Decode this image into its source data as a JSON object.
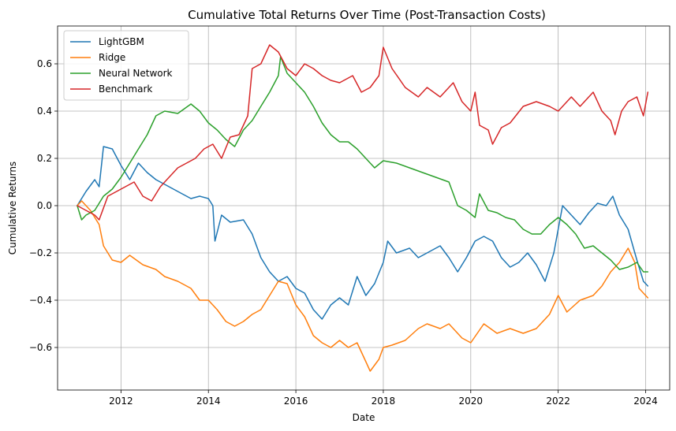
{
  "chart_data": {
    "type": "line",
    "title": "Cumulative Total Returns Over Time (Post-Transaction Costs)",
    "xlabel": "Date",
    "ylabel": "Cumulative Returns",
    "xlim": [
      2010.55,
      2024.55
    ],
    "ylim": [
      -0.78,
      0.76
    ],
    "xticks": [
      2012,
      2014,
      2016,
      2018,
      2020,
      2022,
      2024
    ],
    "xtick_labels": [
      "2012",
      "2014",
      "2016",
      "2018",
      "2020",
      "2022",
      "2024"
    ],
    "yticks": [
      -0.6,
      -0.4,
      -0.2,
      0.0,
      0.2,
      0.4,
      0.6
    ],
    "ytick_labels": [
      "−0.6",
      "−0.4",
      "−0.2",
      "0.0",
      "0.2",
      "0.4",
      "0.6"
    ],
    "grid": true,
    "legend_position": "top-left",
    "series": [
      {
        "name": "LightGBM",
        "color": "#1f77b4",
        "points": [
          [
            2011.0,
            0.0
          ],
          [
            2011.2,
            0.06
          ],
          [
            2011.4,
            0.11
          ],
          [
            2011.5,
            0.08
          ],
          [
            2011.6,
            0.25
          ],
          [
            2011.8,
            0.24
          ],
          [
            2012.0,
            0.17
          ],
          [
            2012.2,
            0.11
          ],
          [
            2012.4,
            0.18
          ],
          [
            2012.6,
            0.14
          ],
          [
            2012.8,
            0.11
          ],
          [
            2013.0,
            0.09
          ],
          [
            2013.3,
            0.06
          ],
          [
            2013.6,
            0.03
          ],
          [
            2013.8,
            0.04
          ],
          [
            2014.0,
            0.03
          ],
          [
            2014.1,
            0.0
          ],
          [
            2014.15,
            -0.15
          ],
          [
            2014.3,
            -0.04
          ],
          [
            2014.5,
            -0.07
          ],
          [
            2014.8,
            -0.06
          ],
          [
            2015.0,
            -0.12
          ],
          [
            2015.2,
            -0.22
          ],
          [
            2015.4,
            -0.28
          ],
          [
            2015.6,
            -0.32
          ],
          [
            2015.8,
            -0.3
          ],
          [
            2016.0,
            -0.35
          ],
          [
            2016.2,
            -0.37
          ],
          [
            2016.4,
            -0.44
          ],
          [
            2016.6,
            -0.48
          ],
          [
            2016.8,
            -0.42
          ],
          [
            2017.0,
            -0.39
          ],
          [
            2017.2,
            -0.42
          ],
          [
            2017.4,
            -0.3
          ],
          [
            2017.6,
            -0.38
          ],
          [
            2017.8,
            -0.33
          ],
          [
            2018.0,
            -0.24
          ],
          [
            2018.1,
            -0.15
          ],
          [
            2018.3,
            -0.2
          ],
          [
            2018.6,
            -0.18
          ],
          [
            2018.8,
            -0.22
          ],
          [
            2019.0,
            -0.2
          ],
          [
            2019.3,
            -0.17
          ],
          [
            2019.5,
            -0.22
          ],
          [
            2019.7,
            -0.28
          ],
          [
            2019.9,
            -0.22
          ],
          [
            2020.1,
            -0.15
          ],
          [
            2020.3,
            -0.13
          ],
          [
            2020.5,
            -0.15
          ],
          [
            2020.7,
            -0.22
          ],
          [
            2020.9,
            -0.26
          ],
          [
            2021.1,
            -0.24
          ],
          [
            2021.3,
            -0.2
          ],
          [
            2021.5,
            -0.25
          ],
          [
            2021.7,
            -0.32
          ],
          [
            2021.9,
            -0.2
          ],
          [
            2022.1,
            0.0
          ],
          [
            2022.3,
            -0.04
          ],
          [
            2022.5,
            -0.08
          ],
          [
            2022.7,
            -0.03
          ],
          [
            2022.9,
            0.01
          ],
          [
            2023.1,
            0.0
          ],
          [
            2023.25,
            0.04
          ],
          [
            2023.4,
            -0.04
          ],
          [
            2023.6,
            -0.1
          ],
          [
            2023.8,
            -0.23
          ],
          [
            2023.95,
            -0.32
          ],
          [
            2024.05,
            -0.34
          ]
        ]
      },
      {
        "name": "Ridge",
        "color": "#ff7f0e",
        "points": [
          [
            2011.0,
            0.0
          ],
          [
            2011.1,
            0.02
          ],
          [
            2011.3,
            -0.02
          ],
          [
            2011.5,
            -0.08
          ],
          [
            2011.6,
            -0.17
          ],
          [
            2011.8,
            -0.23
          ],
          [
            2012.0,
            -0.24
          ],
          [
            2012.2,
            -0.21
          ],
          [
            2012.5,
            -0.25
          ],
          [
            2012.8,
            -0.27
          ],
          [
            2013.0,
            -0.3
          ],
          [
            2013.3,
            -0.32
          ],
          [
            2013.6,
            -0.35
          ],
          [
            2013.8,
            -0.4
          ],
          [
            2014.0,
            -0.4
          ],
          [
            2014.2,
            -0.44
          ],
          [
            2014.4,
            -0.49
          ],
          [
            2014.6,
            -0.51
          ],
          [
            2014.8,
            -0.49
          ],
          [
            2015.0,
            -0.46
          ],
          [
            2015.2,
            -0.44
          ],
          [
            2015.4,
            -0.38
          ],
          [
            2015.6,
            -0.32
          ],
          [
            2015.8,
            -0.33
          ],
          [
            2016.0,
            -0.42
          ],
          [
            2016.2,
            -0.47
          ],
          [
            2016.4,
            -0.55
          ],
          [
            2016.6,
            -0.58
          ],
          [
            2016.8,
            -0.6
          ],
          [
            2017.0,
            -0.57
          ],
          [
            2017.2,
            -0.6
          ],
          [
            2017.4,
            -0.58
          ],
          [
            2017.6,
            -0.66
          ],
          [
            2017.7,
            -0.7
          ],
          [
            2017.9,
            -0.65
          ],
          [
            2018.0,
            -0.6
          ],
          [
            2018.2,
            -0.59
          ],
          [
            2018.5,
            -0.57
          ],
          [
            2018.8,
            -0.52
          ],
          [
            2019.0,
            -0.5
          ],
          [
            2019.3,
            -0.52
          ],
          [
            2019.5,
            -0.5
          ],
          [
            2019.8,
            -0.56
          ],
          [
            2020.0,
            -0.58
          ],
          [
            2020.3,
            -0.5
          ],
          [
            2020.6,
            -0.54
          ],
          [
            2020.9,
            -0.52
          ],
          [
            2021.2,
            -0.54
          ],
          [
            2021.5,
            -0.52
          ],
          [
            2021.8,
            -0.46
          ],
          [
            2022.0,
            -0.38
          ],
          [
            2022.2,
            -0.45
          ],
          [
            2022.5,
            -0.4
          ],
          [
            2022.8,
            -0.38
          ],
          [
            2023.0,
            -0.34
          ],
          [
            2023.2,
            -0.28
          ],
          [
            2023.4,
            -0.24
          ],
          [
            2023.6,
            -0.18
          ],
          [
            2023.75,
            -0.24
          ],
          [
            2023.85,
            -0.35
          ],
          [
            2024.0,
            -0.38
          ],
          [
            2024.05,
            -0.39
          ]
        ]
      },
      {
        "name": "Neural Network",
        "color": "#2ca02c",
        "points": [
          [
            2011.0,
            0.0
          ],
          [
            2011.1,
            -0.06
          ],
          [
            2011.2,
            -0.04
          ],
          [
            2011.4,
            -0.02
          ],
          [
            2011.6,
            0.04
          ],
          [
            2011.8,
            0.07
          ],
          [
            2012.0,
            0.12
          ],
          [
            2012.2,
            0.18
          ],
          [
            2012.4,
            0.24
          ],
          [
            2012.6,
            0.3
          ],
          [
            2012.8,
            0.38
          ],
          [
            2013.0,
            0.4
          ],
          [
            2013.3,
            0.39
          ],
          [
            2013.6,
            0.43
          ],
          [
            2013.8,
            0.4
          ],
          [
            2014.0,
            0.35
          ],
          [
            2014.2,
            0.32
          ],
          [
            2014.4,
            0.28
          ],
          [
            2014.6,
            0.25
          ],
          [
            2014.8,
            0.32
          ],
          [
            2015.0,
            0.36
          ],
          [
            2015.2,
            0.42
          ],
          [
            2015.4,
            0.48
          ],
          [
            2015.6,
            0.55
          ],
          [
            2015.65,
            0.63
          ],
          [
            2015.8,
            0.56
          ],
          [
            2016.0,
            0.52
          ],
          [
            2016.2,
            0.48
          ],
          [
            2016.4,
            0.42
          ],
          [
            2016.6,
            0.35
          ],
          [
            2016.8,
            0.3
          ],
          [
            2017.0,
            0.27
          ],
          [
            2017.2,
            0.27
          ],
          [
            2017.4,
            0.24
          ],
          [
            2017.6,
            0.2
          ],
          [
            2017.8,
            0.16
          ],
          [
            2018.0,
            0.19
          ],
          [
            2018.3,
            0.18
          ],
          [
            2018.6,
            0.16
          ],
          [
            2018.9,
            0.14
          ],
          [
            2019.2,
            0.12
          ],
          [
            2019.5,
            0.1
          ],
          [
            2019.7,
            0.0
          ],
          [
            2019.9,
            -0.02
          ],
          [
            2020.1,
            -0.05
          ],
          [
            2020.2,
            0.05
          ],
          [
            2020.4,
            -0.02
          ],
          [
            2020.6,
            -0.03
          ],
          [
            2020.8,
            -0.05
          ],
          [
            2021.0,
            -0.06
          ],
          [
            2021.2,
            -0.1
          ],
          [
            2021.4,
            -0.12
          ],
          [
            2021.6,
            -0.12
          ],
          [
            2021.8,
            -0.08
          ],
          [
            2022.0,
            -0.05
          ],
          [
            2022.2,
            -0.08
          ],
          [
            2022.4,
            -0.12
          ],
          [
            2022.6,
            -0.18
          ],
          [
            2022.8,
            -0.17
          ],
          [
            2023.0,
            -0.2
          ],
          [
            2023.2,
            -0.23
          ],
          [
            2023.4,
            -0.27
          ],
          [
            2023.6,
            -0.26
          ],
          [
            2023.8,
            -0.24
          ],
          [
            2023.95,
            -0.28
          ],
          [
            2024.05,
            -0.28
          ]
        ]
      },
      {
        "name": "Benchmark",
        "color": "#d62728",
        "points": [
          [
            2011.0,
            0.0
          ],
          [
            2011.2,
            -0.02
          ],
          [
            2011.4,
            -0.04
          ],
          [
            2011.5,
            -0.06
          ],
          [
            2011.7,
            0.04
          ],
          [
            2011.9,
            0.06
          ],
          [
            2012.1,
            0.08
          ],
          [
            2012.3,
            0.1
          ],
          [
            2012.5,
            0.04
          ],
          [
            2012.7,
            0.02
          ],
          [
            2012.9,
            0.08
          ],
          [
            2013.1,
            0.12
          ],
          [
            2013.3,
            0.16
          ],
          [
            2013.5,
            0.18
          ],
          [
            2013.7,
            0.2
          ],
          [
            2013.9,
            0.24
          ],
          [
            2014.1,
            0.26
          ],
          [
            2014.3,
            0.2
          ],
          [
            2014.5,
            0.29
          ],
          [
            2014.7,
            0.3
          ],
          [
            2014.9,
            0.38
          ],
          [
            2015.0,
            0.58
          ],
          [
            2015.2,
            0.6
          ],
          [
            2015.4,
            0.68
          ],
          [
            2015.6,
            0.65
          ],
          [
            2015.8,
            0.58
          ],
          [
            2016.0,
            0.55
          ],
          [
            2016.2,
            0.6
          ],
          [
            2016.4,
            0.58
          ],
          [
            2016.6,
            0.55
          ],
          [
            2016.8,
            0.53
          ],
          [
            2017.0,
            0.52
          ],
          [
            2017.3,
            0.55
          ],
          [
            2017.5,
            0.48
          ],
          [
            2017.7,
            0.5
          ],
          [
            2017.9,
            0.55
          ],
          [
            2018.0,
            0.67
          ],
          [
            2018.2,
            0.58
          ],
          [
            2018.5,
            0.5
          ],
          [
            2018.8,
            0.46
          ],
          [
            2019.0,
            0.5
          ],
          [
            2019.3,
            0.46
          ],
          [
            2019.6,
            0.52
          ],
          [
            2019.8,
            0.44
          ],
          [
            2020.0,
            0.4
          ],
          [
            2020.1,
            0.48
          ],
          [
            2020.2,
            0.34
          ],
          [
            2020.4,
            0.32
          ],
          [
            2020.5,
            0.26
          ],
          [
            2020.7,
            0.33
          ],
          [
            2020.9,
            0.35
          ],
          [
            2021.2,
            0.42
          ],
          [
            2021.5,
            0.44
          ],
          [
            2021.8,
            0.42
          ],
          [
            2022.0,
            0.4
          ],
          [
            2022.3,
            0.46
          ],
          [
            2022.5,
            0.42
          ],
          [
            2022.8,
            0.48
          ],
          [
            2023.0,
            0.4
          ],
          [
            2023.2,
            0.36
          ],
          [
            2023.3,
            0.3
          ],
          [
            2023.45,
            0.4
          ],
          [
            2023.6,
            0.44
          ],
          [
            2023.8,
            0.46
          ],
          [
            2023.95,
            0.38
          ],
          [
            2024.05,
            0.48
          ]
        ]
      }
    ]
  }
}
